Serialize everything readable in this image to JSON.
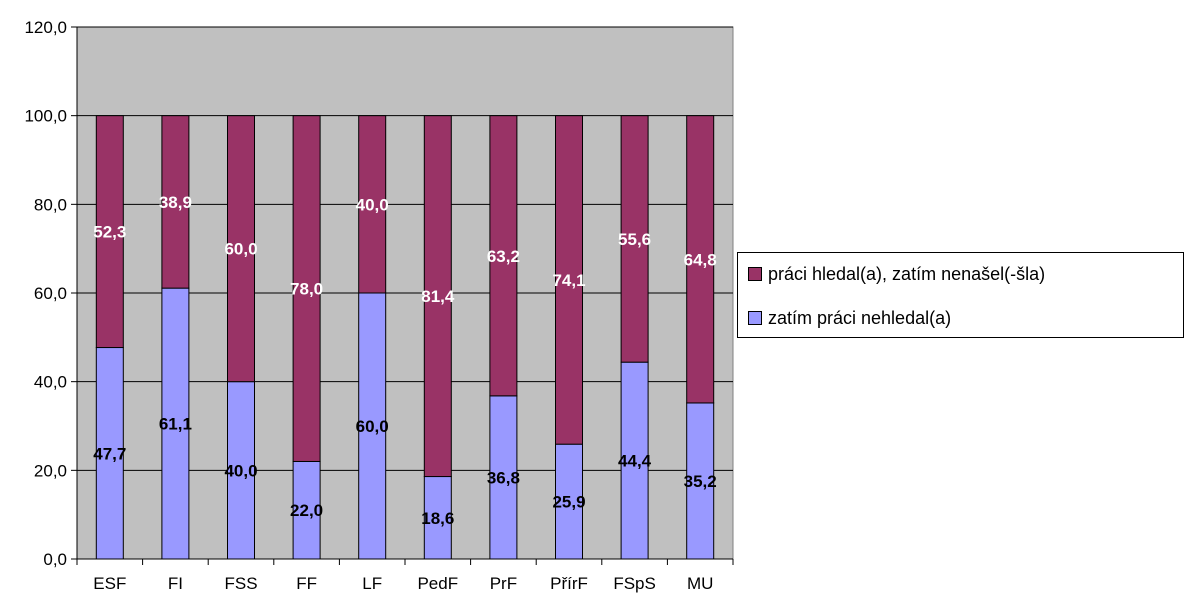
{
  "chart_data": {
    "type": "bar",
    "stacked": true,
    "categories": [
      "ESF",
      "FI",
      "FSS",
      "FF",
      "LF",
      "PedF",
      "PrF",
      "PřírF",
      "FSpS",
      "MU"
    ],
    "series": [
      {
        "name": "zatím práci nehledal(a)",
        "color": "#9999FF",
        "label_color": "#000000",
        "values": [
          47.7,
          61.1,
          40.0,
          22.0,
          60.0,
          18.6,
          36.8,
          25.9,
          44.4,
          35.2
        ],
        "labels": [
          "47,7",
          "61,1",
          "40,0",
          "22,0",
          "60,0",
          "18,6",
          "36,8",
          "25,9",
          "44,4",
          "35,2"
        ]
      },
      {
        "name": "práci hledal(a), zatím nenašel(-šla)",
        "color": "#993366",
        "label_color": "#FFFFFF",
        "values": [
          52.3,
          38.9,
          60.0,
          78.0,
          40.0,
          81.4,
          63.2,
          74.1,
          55.6,
          64.8
        ],
        "labels": [
          "52,3",
          "38,9",
          "60,0",
          "78,0",
          "40,0",
          "81,4",
          "63,2",
          "74,1",
          "55,6",
          "64,8"
        ]
      }
    ],
    "ylim": [
      0,
      120
    ],
    "yticks": [
      0,
      20,
      40,
      60,
      80,
      100,
      120
    ],
    "ytick_labels": [
      "0,0",
      "20,0",
      "40,0",
      "60,0",
      "80,0",
      "100,0",
      "120,0"
    ],
    "grid": true,
    "plot_background": "#C0C0C0",
    "legend_position": "right",
    "legend_order": [
      "práci hledal(a), zatím nenašel(-šla)",
      "zatím práci nehledal(a)"
    ]
  },
  "legend": {
    "item1_label": "práci hledal(a), zatím nenašel(-šla)",
    "item2_label": "zatím práci nehledal(a)"
  }
}
